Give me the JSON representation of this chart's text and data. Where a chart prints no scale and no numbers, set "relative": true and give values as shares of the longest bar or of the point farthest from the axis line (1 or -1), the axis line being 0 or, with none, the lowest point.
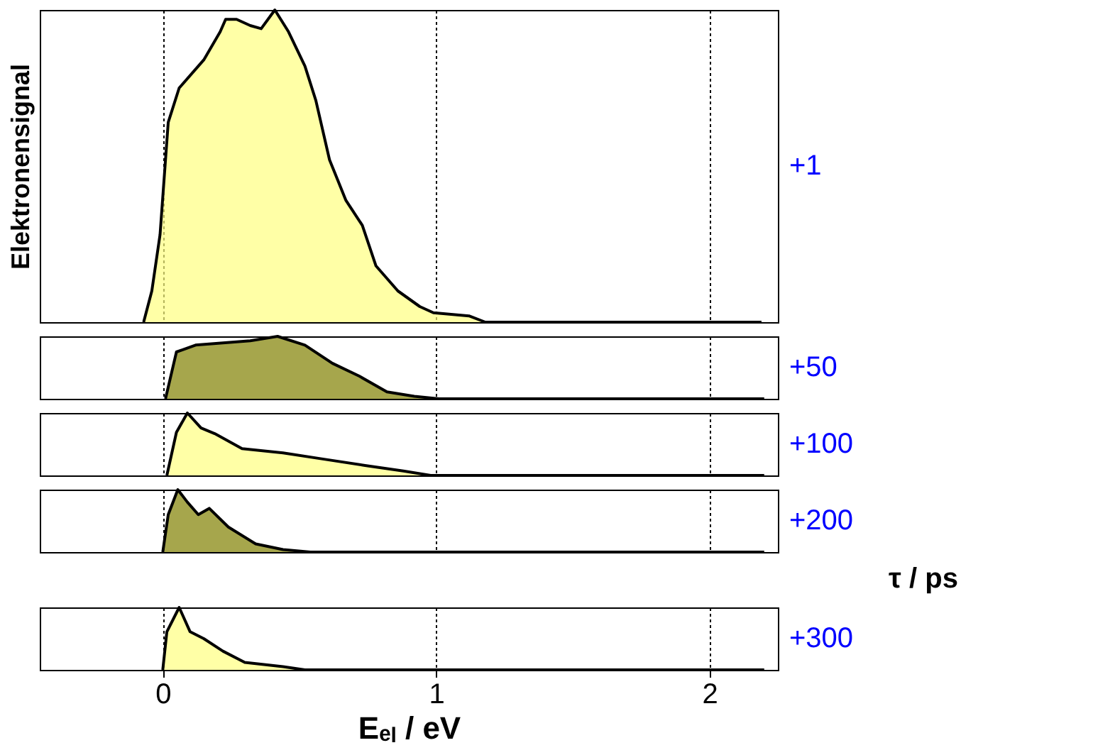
{
  "chart_data": [
    {
      "type": "area",
      "relative": true,
      "ylabel": "Elektronensignal",
      "grid": "x",
      "xlim": [
        -0.45,
        2.25
      ],
      "xticks": [
        0,
        1,
        2
      ],
      "tick_labels": false,
      "series": [
        {
          "name": "+1",
          "color": "#ffff80",
          "x": [
            -0.07,
            -0.04,
            -0.01,
            0.02,
            0.06,
            0.15,
            0.21,
            0.23,
            0.27,
            0.32,
            0.36,
            0.41,
            0.46,
            0.52,
            0.56,
            0.61,
            0.67,
            0.73,
            0.78,
            0.86,
            0.94,
            0.99,
            1.12,
            1.18,
            1.31,
            2.19
          ],
          "values": [
            0,
            0.1,
            0.28,
            0.64,
            0.75,
            0.84,
            0.93,
            0.97,
            0.97,
            0.95,
            0.94,
            1.0,
            0.93,
            0.82,
            0.71,
            0.52,
            0.39,
            0.31,
            0.18,
            0.1,
            0.05,
            0.03,
            0.02,
            0,
            0,
            0
          ]
        }
      ]
    },
    {
      "type": "area",
      "relative": true,
      "grid": "x",
      "xlim": [
        -0.45,
        2.25
      ],
      "xticks": [
        0,
        1,
        2
      ],
      "tick_labels": false,
      "series": [
        {
          "name": "+50",
          "color": "#808000",
          "x": [
            0.01,
            0.05,
            0.12,
            0.32,
            0.42,
            0.52,
            0.62,
            0.72,
            0.82,
            0.92,
            1.01,
            2.2
          ],
          "values": [
            0,
            0.75,
            0.86,
            0.93,
            1,
            0.86,
            0.57,
            0.36,
            0.11,
            0.04,
            0,
            0
          ]
        }
      ]
    },
    {
      "type": "area",
      "relative": true,
      "grid": "x",
      "xlim": [
        -0.45,
        2.25
      ],
      "xticks": [
        0,
        1,
        2
      ],
      "tick_labels": false,
      "series": [
        {
          "name": "+100",
          "color": "#ffff80",
          "x": [
            0.015,
            0.05,
            0.09,
            0.14,
            0.19,
            0.29,
            0.44,
            0.59,
            0.74,
            0.88,
            0.98,
            2.2
          ],
          "values": [
            0,
            0.69,
            1,
            0.76,
            0.67,
            0.43,
            0.36,
            0.26,
            0.16,
            0.07,
            0,
            0
          ]
        }
      ]
    },
    {
      "type": "area",
      "relative": true,
      "grid": "x",
      "xlim": [
        -0.45,
        2.25
      ],
      "xticks": [
        0,
        1,
        2
      ],
      "tick_labels": false,
      "series": [
        {
          "name": "+200",
          "color": "#808000",
          "x": [
            0,
            0.02,
            0.055,
            0.09,
            0.13,
            0.17,
            0.24,
            0.34,
            0.44,
            0.54,
            2.2
          ],
          "values": [
            0,
            0.6,
            1,
            0.8,
            0.6,
            0.7,
            0.4,
            0.13,
            0.04,
            0,
            0
          ]
        }
      ]
    },
    {
      "type": "area",
      "relative": true,
      "xlabel": "Eₑₗ / eV",
      "annotations": [
        "τ / ps"
      ],
      "grid": "x",
      "xlim": [
        -0.45,
        2.25
      ],
      "xticks": [
        0,
        1,
        2
      ],
      "tick_labels": "x",
      "series": [
        {
          "name": "+300",
          "color": "#ffff80",
          "x": [
            0,
            0.015,
            0.06,
            0.1,
            0.15,
            0.22,
            0.3,
            0.44,
            0.52,
            2.2
          ],
          "values": [
            0,
            0.61,
            1,
            0.61,
            0.5,
            0.3,
            0.12,
            0.05,
            0,
            0
          ]
        }
      ]
    }
  ]
}
